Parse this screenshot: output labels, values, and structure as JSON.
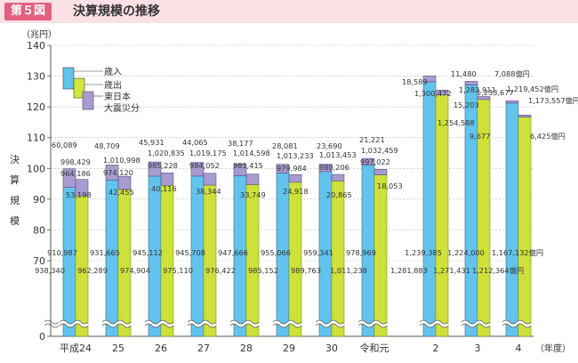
{
  "header": {
    "figure_number": "第５図",
    "title": "決算規模の推移"
  },
  "chart_data": {
    "type": "bar",
    "unit_label": "（兆円）",
    "y_axis_title": "決算規模",
    "x_axis_unit": "（年度）",
    "ylim": [
      0,
      140
    ],
    "y_ticks": [
      0,
      70,
      80,
      90,
      100,
      110,
      120,
      130,
      140
    ],
    "y_axis_break": true,
    "categories": [
      "平成24",
      "25",
      "26",
      "27",
      "28",
      "29",
      "30",
      "令和元",
      "2",
      "3",
      "4"
    ],
    "legend": [
      "歳入",
      "歳出",
      "東日本",
      "大震災分"
    ],
    "colors": {
      "revenue": "#62c3ec",
      "expenditure": "#d3e63c",
      "earthquake": "#a89bcf",
      "axis": "#555555",
      "grid": "#bbbbbb"
    },
    "series": [
      {
        "name": "歳入",
        "totals": [
          998429,
          1010998,
          1020835,
          1019175,
          1014598,
          1013233,
          1013453,
          1032459,
          1300472,
          1282911,
          1219452
        ],
        "earthquake": [
          60089,
          48709,
          45931,
          44065,
          38177,
          28081,
          23690,
          21221,
          18589,
          11480,
          7088
        ],
        "base": [
          938340,
          962289,
          974904,
          975110,
          976422,
          985152,
          989763,
          1011238,
          1281883,
          1271431,
          1212364
        ]
      },
      {
        "name": "歳出",
        "totals": [
          964186,
          974120,
          985228,
          984052,
          981415,
          979984,
          980206,
          997022,
          1254588,
          1233677,
          1173557
        ],
        "earthquake": [
          53198,
          42455,
          40116,
          38344,
          33749,
          24918,
          20865,
          18053,
          15203,
          9677,
          6425
        ],
        "base": [
          910987,
          931665,
          945112,
          945708,
          947666,
          955066,
          959341,
          978969,
          1239385,
          1224000,
          1167132
        ]
      }
    ],
    "unit_suffix": "億円",
    "total_rev_labels": [
      "998,429",
      "1,010,998",
      "1,020,835",
      "1,019,175",
      "1,014,598",
      "1,013,233",
      "1,013,453",
      "1,032,459",
      "1,300,472",
      "1,282,911",
      "1,219,452億円"
    ],
    "total_exp_labels": [
      "964,186",
      "974,120",
      "985,228",
      "984,052",
      "981,415",
      "979,984",
      "980,206",
      "997,022",
      "1,254,588",
      "1,233,677",
      "1,173,557億円"
    ],
    "eq_rev_labels": [
      "60,089",
      "48,709",
      "45,931",
      "44,065",
      "38,177",
      "28,081",
      "23,690",
      "21,221",
      "18,589",
      "11,480",
      "7,088億円"
    ],
    "eq_exp_labels": [
      "53,198",
      "42,455",
      "40,116",
      "38,344",
      "33,749",
      "24,918",
      "20,865",
      "18,053",
      "15,203",
      "9,677",
      "6,425億円"
    ],
    "base_rev_labels": [
      "938,340",
      "962,289",
      "974,904",
      "975,110",
      "976,422",
      "985,152",
      "989,763",
      "1,011,238",
      "1,281,883",
      "1,271,431",
      "1,212,364億円"
    ],
    "base_exp_labels": [
      "910,987",
      "931,665",
      "945,112",
      "945,708",
      "947,666",
      "955,066",
      "959,341",
      "978,969",
      "1,239,385",
      "1,224,000",
      "1,167,132億円"
    ]
  }
}
